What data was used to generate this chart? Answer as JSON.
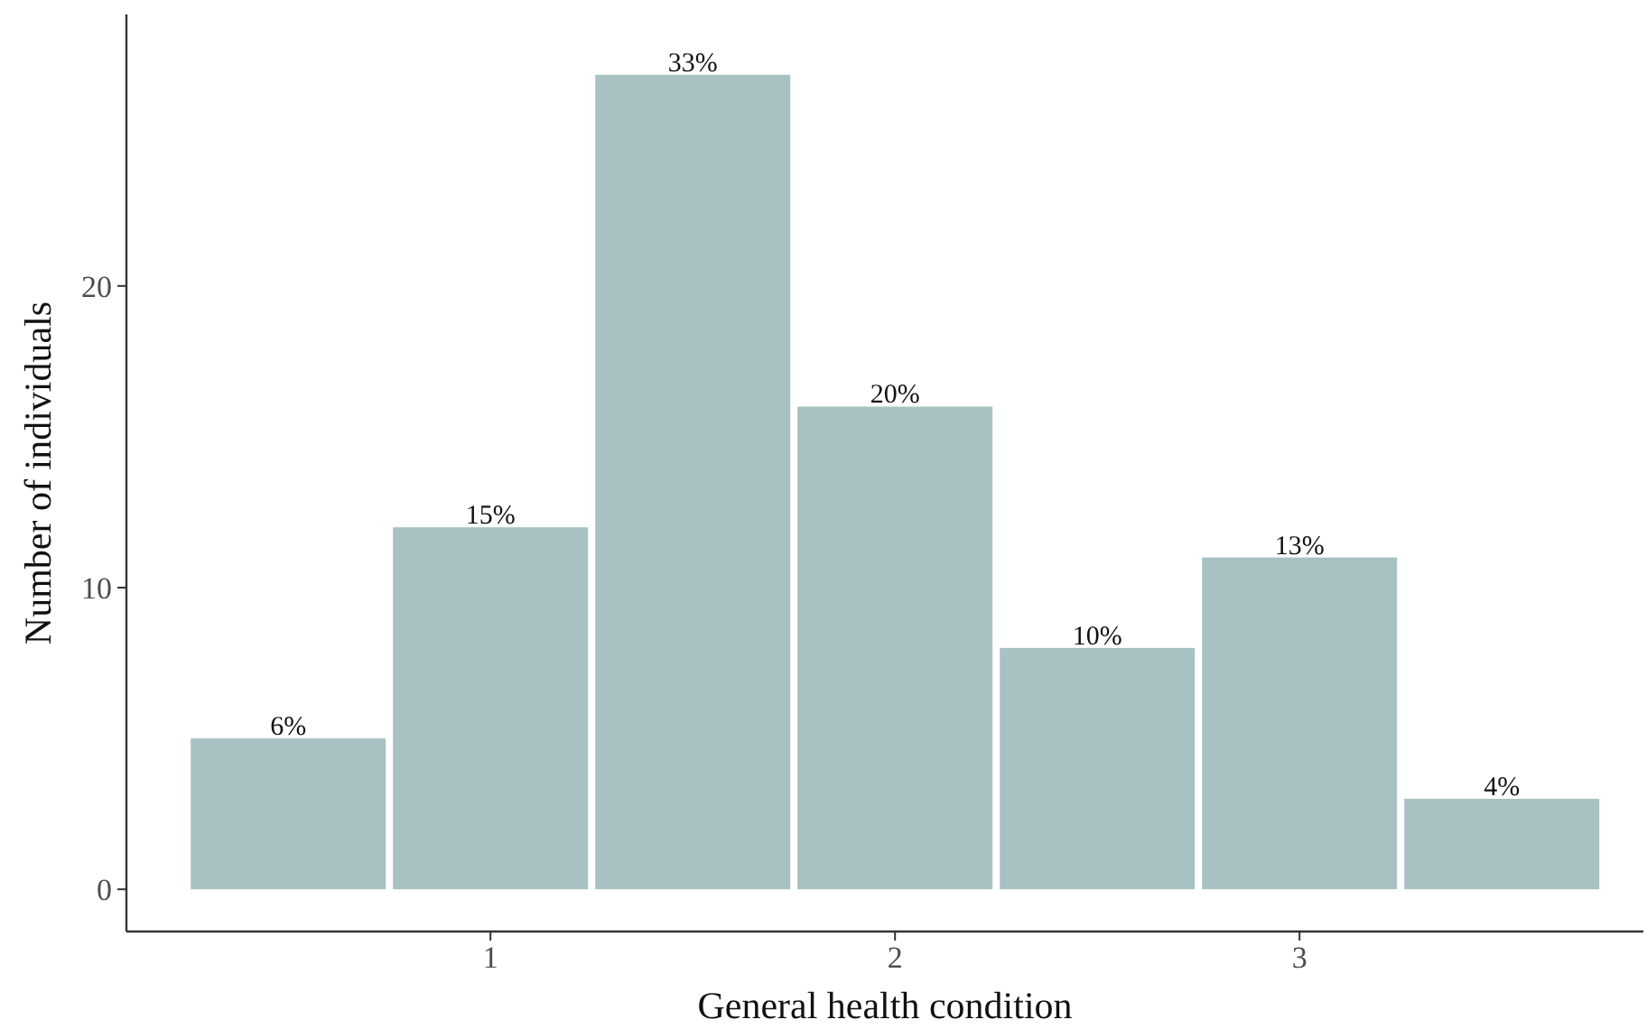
{
  "chart_data": {
    "type": "histogram",
    "xlabel": "General health condition",
    "ylabel": "Number of individuals",
    "bins": [
      0.25,
      0.75,
      1.25,
      1.75,
      2.25,
      2.75,
      3.25,
      3.75
    ],
    "values": [
      5,
      12,
      27,
      16,
      8,
      11,
      3
    ],
    "annotations": [
      {
        "text": "6%",
        "x": 0.5,
        "y": 5
      },
      {
        "text": "15%",
        "x": 1,
        "y": 12
      },
      {
        "text": "33%",
        "x": 1.5,
        "y": 27
      },
      {
        "text": "20%",
        "x": 2,
        "y": 16
      },
      {
        "text": "10%",
        "x": 2.5,
        "y": 8
      },
      {
        "text": "13%",
        "x": 3,
        "y": 11
      },
      {
        "text": "4%",
        "x": 3.5,
        "y": 3
      }
    ],
    "color": "#a8c2c4",
    "xlim": [
      0.1,
      3.85
    ],
    "xticks": [
      1,
      2,
      3
    ],
    "ylim": [
      -1.4,
      29
    ],
    "yticks": [
      0,
      10,
      20
    ],
    "grid": false
  }
}
